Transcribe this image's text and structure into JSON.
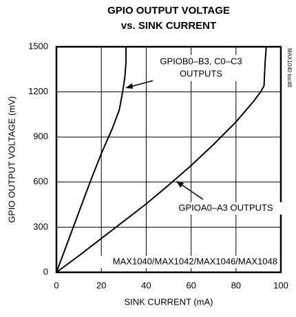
{
  "chart_data": {
    "type": "line",
    "title": [
      "GPIO OUTPUT VOLTAGE",
      "vs. SINK CURRENT"
    ],
    "xlabel": "SINK CURRENT (mA)",
    "ylabel": "GPIO OUTPUT VOLTAGE (mV)",
    "xlim": [
      0,
      100
    ],
    "xticks": [
      0,
      20,
      40,
      60,
      80,
      100
    ],
    "ylim": [
      0,
      1500
    ],
    "yticks": [
      0,
      300,
      600,
      900,
      1200,
      1500
    ],
    "grid": true,
    "series": [
      {
        "color": "#000000",
        "x": [
          0,
          5,
          10,
          15,
          20,
          25,
          28,
          29.5,
          30.5,
          31,
          31
        ],
        "values": [
          0,
          200,
          400,
          600,
          790,
          960,
          1080,
          1200,
          1300,
          1400,
          1500
        ]
      },
      {
        "color": "#000000",
        "x": [
          0,
          10,
          20,
          30,
          40,
          50,
          60,
          70,
          80,
          88,
          91,
          92.5,
          93,
          93.5
        ],
        "values": [
          0,
          110,
          225,
          340,
          455,
          580,
          710,
          850,
          1000,
          1140,
          1200,
          1240,
          1400,
          1500
        ]
      }
    ],
    "annotations": [
      "GPIOB0–B3, C0–C3",
      "OUTPUTS",
      "GPIOA0–A3 OUTPUTS",
      "MAX1040/MAX1042/MAX1046/MAX1048",
      "MAX1040 toc48"
    ]
  }
}
